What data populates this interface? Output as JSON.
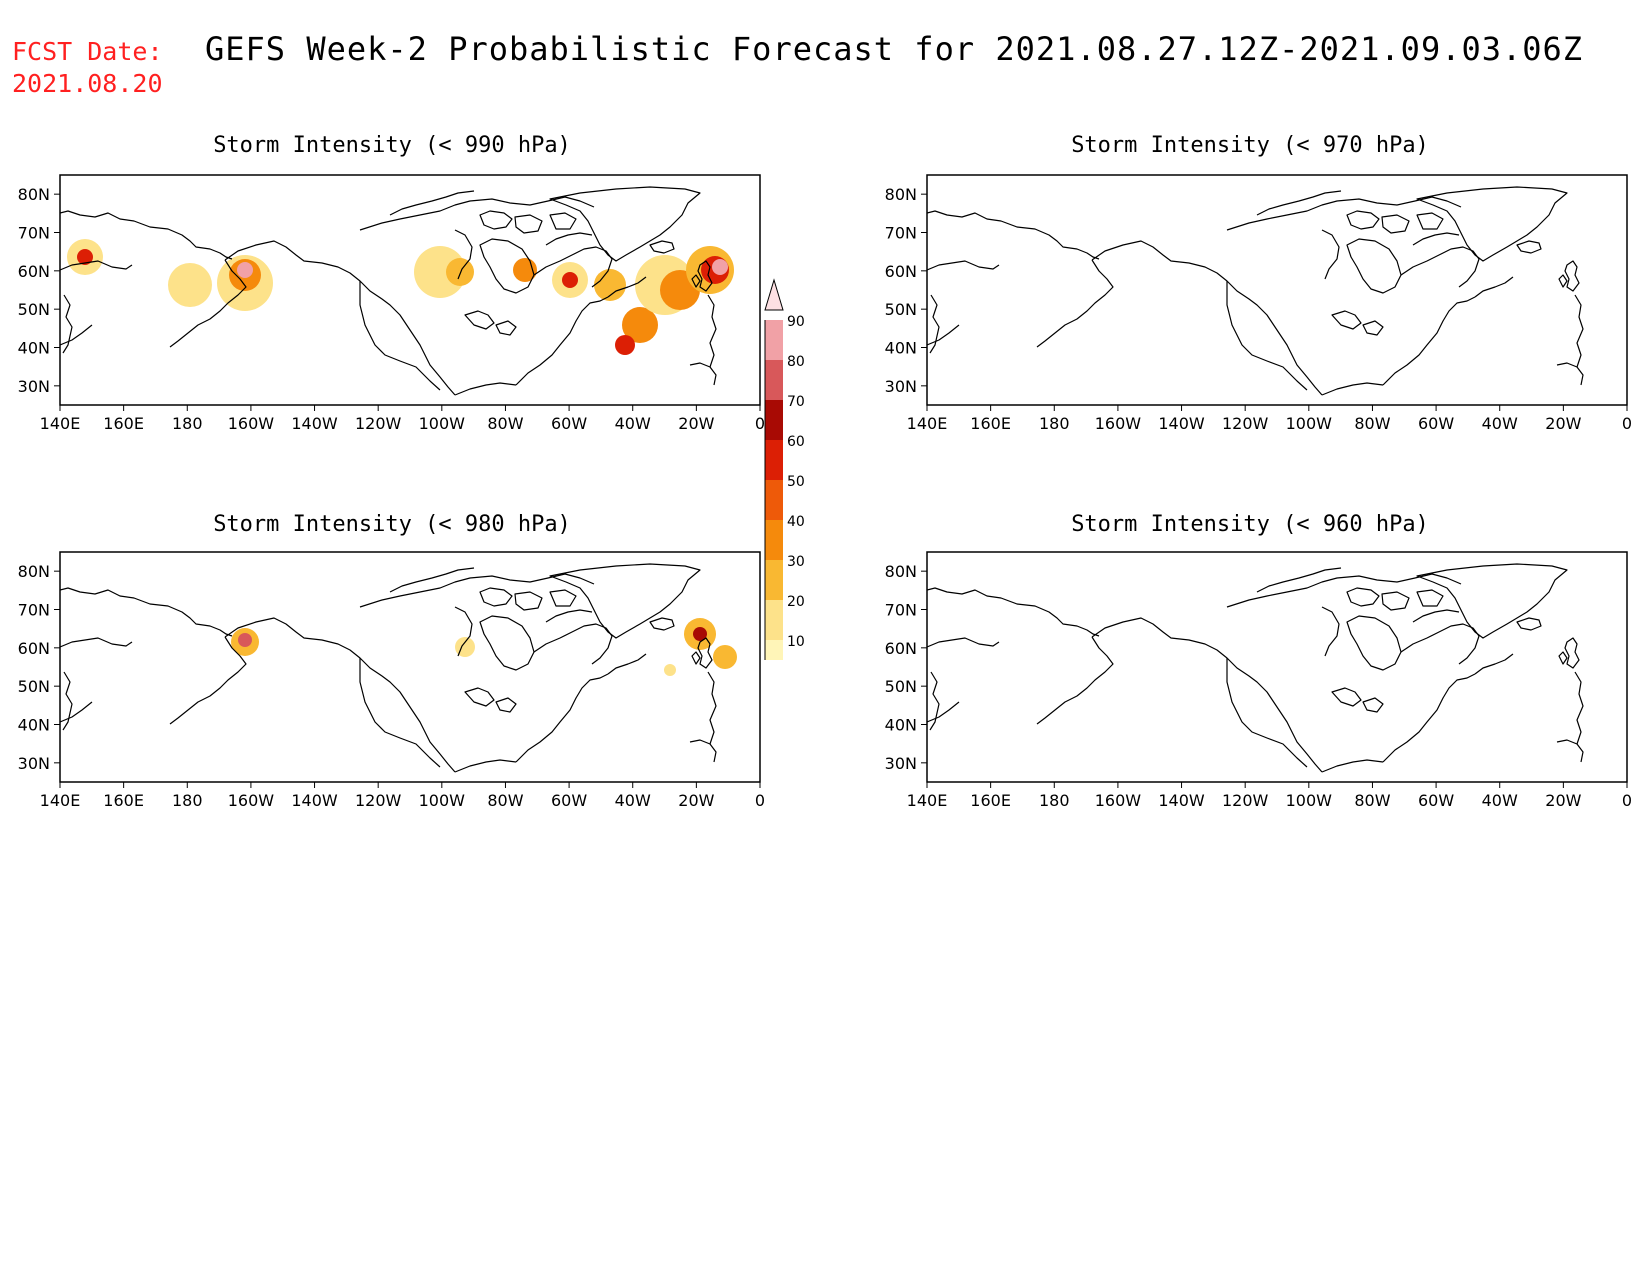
{
  "header": {
    "fcst_label": "FCST Date:",
    "fcst_date": "2021.08.20",
    "title": "GEFS Week-2 Probabilistic Forecast for 2021.08.27.12Z-2021.09.03.06Z"
  },
  "map_data": {
    "lon_ticks": [
      "140E",
      "160E",
      "180",
      "160W",
      "140W",
      "120W",
      "100W",
      "80W",
      "60W",
      "40W",
      "20W",
      "0"
    ],
    "lat_ticks": [
      "80N",
      "70N",
      "60N",
      "50N",
      "40N",
      "30N"
    ],
    "lon_range": [
      140,
      360
    ],
    "lat_range": [
      25,
      85
    ]
  },
  "panels": [
    {
      "title": "Storm Intensity (< 990 hPa)"
    },
    {
      "title": "Storm Intensity (< 970 hPa)"
    },
    {
      "title": "Storm Intensity (< 980 hPa)"
    },
    {
      "title": "Storm Intensity (< 960 hPa)"
    }
  ],
  "colorbar": {
    "levels": [
      "10",
      "20",
      "30",
      "40",
      "50",
      "60",
      "70",
      "80",
      "90"
    ],
    "colors": [
      "#fff5b8",
      "#fde28a",
      "#f9b832",
      "#f58a0c",
      "#ee5a09",
      "#dc1f05",
      "#a80a04",
      "#d8585a",
      "#f1a1a6",
      "#fde0e3"
    ]
  },
  "colors": {
    "title_red": "#ff2020"
  }
}
